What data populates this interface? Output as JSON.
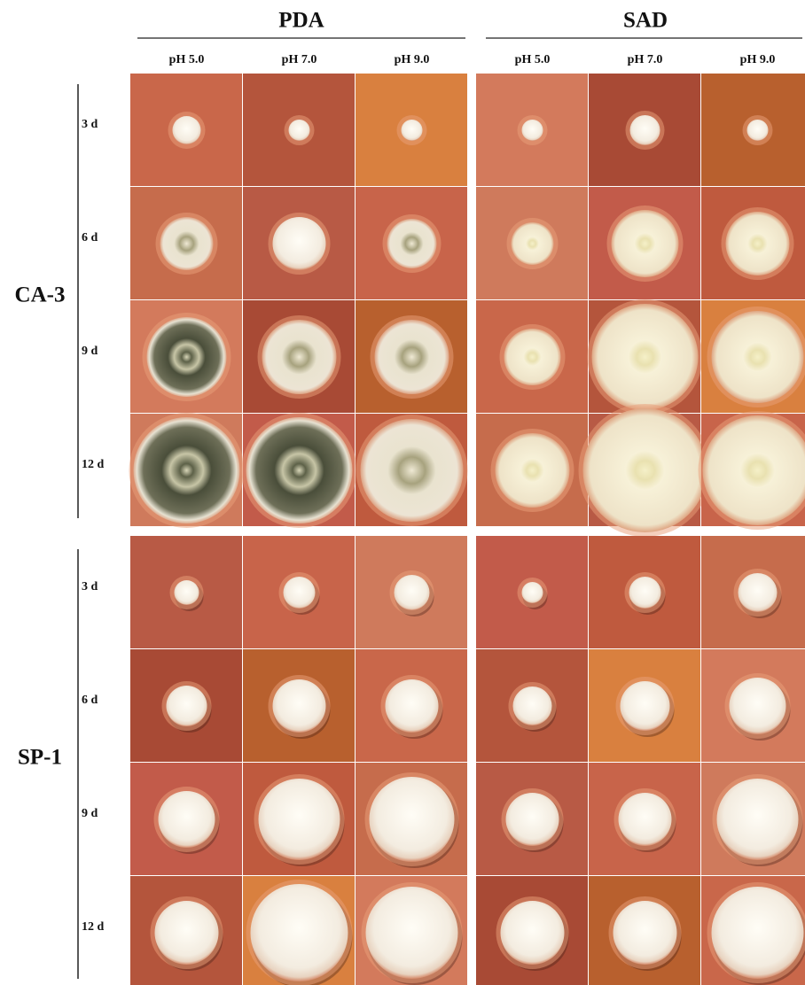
{
  "headers": {
    "media": [
      "PDA",
      "SAD"
    ],
    "ph": [
      "pH 5.0",
      "pH 7.0",
      "pH 9.0",
      "pH 5.0",
      "pH 7.0",
      "pH 9.0"
    ]
  },
  "strains": [
    {
      "name": "CA-3",
      "days": [
        "3 d",
        "6 d",
        "9 d",
        "12 d"
      ]
    },
    {
      "name": "SP-1",
      "days": [
        "3 d",
        "6 d",
        "9 d",
        "12 d"
      ]
    }
  ]
}
